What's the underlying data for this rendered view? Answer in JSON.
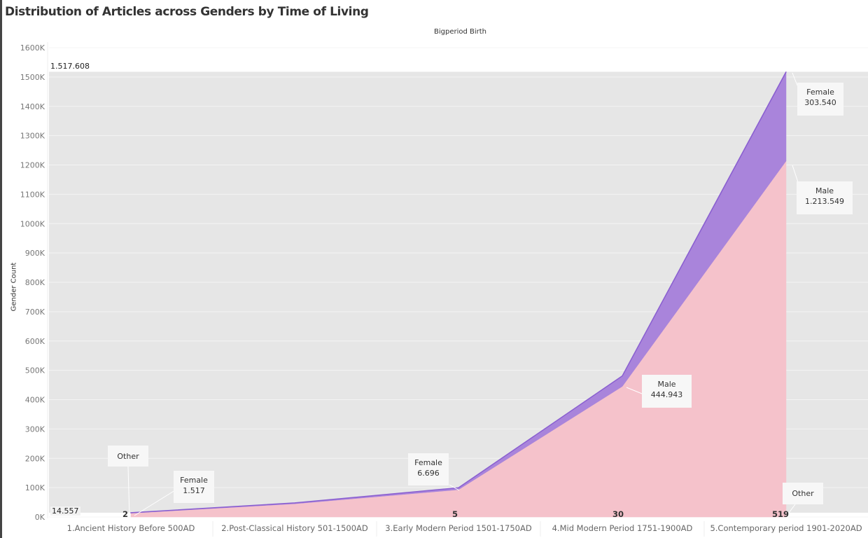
{
  "chart_data": {
    "type": "area",
    "stacked": true,
    "title": "Distribution of Articles across Genders by Time of Living",
    "column_header": "Bigperiod Birth",
    "ylabel": "Gender Count",
    "xlabel": "",
    "ylim": [
      0,
      1600000
    ],
    "y_ticks": [
      "0K",
      "100K",
      "200K",
      "300K",
      "400K",
      "500K",
      "600K",
      "700K",
      "800K",
      "900K",
      "1000K",
      "1100K",
      "1200K",
      "1300K",
      "1400K",
      "1500K",
      "1600K"
    ],
    "grid": true,
    "categories": [
      "1.Ancient History Before 500AD",
      "2.Post-Classical History 501-1500AD",
      "3.Early Modern Period 1501-1750AD",
      "4.Mid Modern Period 1751-1900AD",
      "5.Contemporary period 1901-2020AD"
    ],
    "series": [
      {
        "name": "Male",
        "values": [
          13038,
          45000,
          93000,
          444943,
          1213549
        ],
        "color": "#f5c2cb"
      },
      {
        "name": "Female",
        "values": [
          1517,
          3000,
          6696,
          36000,
          303540
        ],
        "color": "#a984db"
      },
      {
        "name": "Other",
        "values": [
          2,
          3,
          5,
          30,
          519
        ],
        "color": "#8a5fd0"
      }
    ],
    "reference_band": {
      "min_label": "14.557",
      "max_label": "1.517.608",
      "min": 14557,
      "max": 1517608,
      "color": "#e6e6e6"
    },
    "annotations": [
      {
        "title": "Other",
        "value": ""
      },
      {
        "title": "Female",
        "value": "1.517"
      },
      {
        "title": "Female",
        "value": "6.696"
      },
      {
        "title": "Male",
        "value": "444.943"
      },
      {
        "title": "Female",
        "value": "303.540"
      },
      {
        "title": "Male",
        "value": "1.213.549"
      },
      {
        "title": "Other",
        "value": ""
      }
    ],
    "other_labels": [
      "2",
      "",
      "5",
      "30",
      "519"
    ]
  }
}
